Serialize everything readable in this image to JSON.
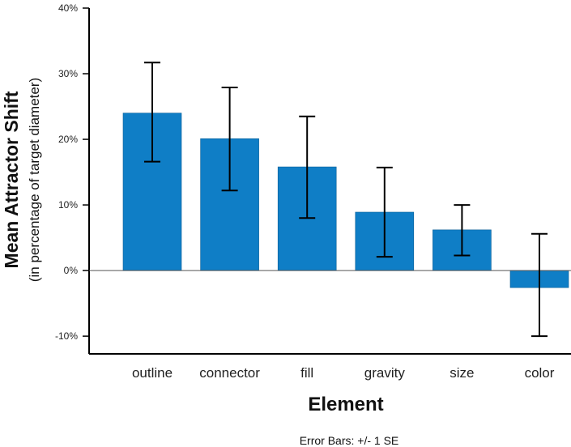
{
  "chart_data": {
    "type": "bar",
    "categories": [
      "outline",
      "connector",
      "fill",
      "gravity",
      "size",
      "color"
    ],
    "values": [
      24.0,
      20.1,
      15.8,
      8.9,
      6.2,
      -2.6
    ],
    "error_bars": {
      "lower": [
        16.6,
        12.2,
        8.0,
        2.1,
        2.3,
        -10.0
      ],
      "upper": [
        31.7,
        27.9,
        23.5,
        15.7,
        10.0,
        5.6
      ]
    },
    "xlabel": "Element",
    "ylabel": "Mean Attractor Shift",
    "ylabel_sub": "(in percentage of target diameter)",
    "ylim": [
      -12.7,
      40
    ],
    "yticks": [
      -10,
      0,
      10,
      20,
      30,
      40
    ],
    "ytick_labels": [
      "-10%",
      "0%",
      "10%",
      "20%",
      "30%",
      "40%"
    ],
    "bar_color": "#0f7ec6",
    "footnote": "Error  Bars: +/- 1 SE",
    "grid": false,
    "legend": "none"
  }
}
